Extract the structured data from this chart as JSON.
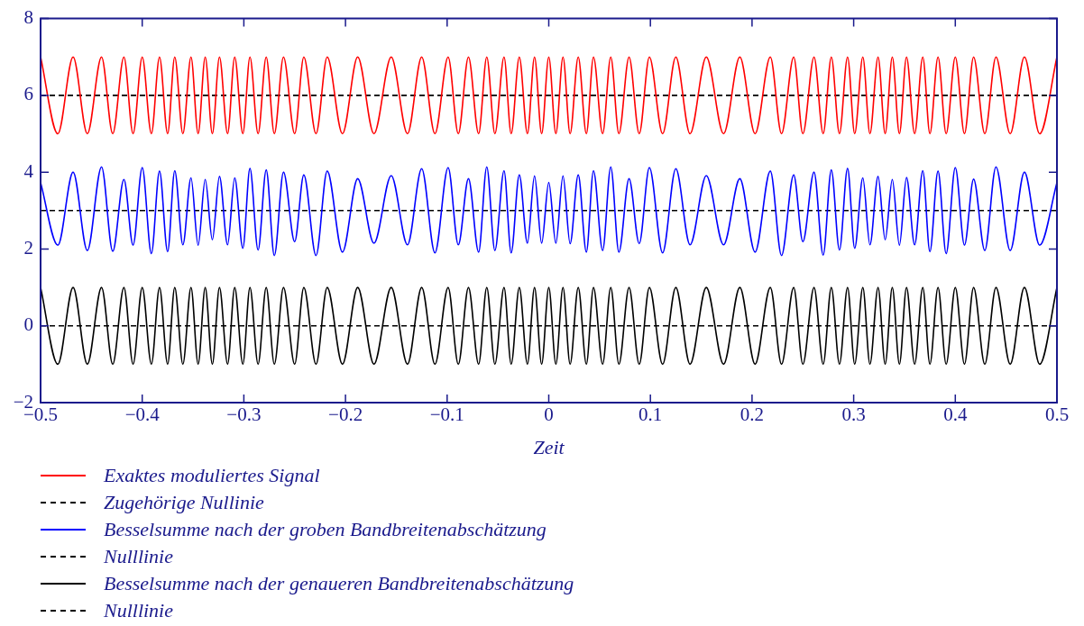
{
  "chart_data": {
    "type": "line",
    "xlabel": "Zeit",
    "x": [
      -0.5,
      -0.483,
      -0.468,
      -0.454,
      -0.44,
      -0.429,
      -0.418,
      -0.409,
      -0.4,
      -0.391,
      -0.383,
      -0.375,
      -0.368,
      -0.36,
      -0.352,
      -0.345,
      -0.338,
      -0.331,
      -0.324,
      -0.316,
      -0.309,
      -0.301,
      -0.294,
      -0.286,
      -0.278,
      -0.27,
      -0.261,
      -0.25,
      -0.241,
      -0.229,
      -0.218,
      -0.203,
      -0.188,
      -0.172,
      -0.155,
      -0.139,
      -0.125,
      -0.112,
      -0.099,
      -0.089,
      -0.079,
      -0.069,
      -0.061,
      -0.053,
      -0.044,
      -0.037,
      -0.029,
      -0.021,
      -0.014,
      -0.007,
      0,
      0.007,
      0.014,
      0.021,
      0.029,
      0.037,
      0.044,
      0.053,
      0.061,
      0.069,
      0.079,
      0.089,
      0.099,
      0.112,
      0.125,
      0.139,
      0.155,
      0.172,
      0.188,
      0.203,
      0.218,
      0.229,
      0.241,
      0.25,
      0.261,
      0.27,
      0.278,
      0.286,
      0.294,
      0.301,
      0.309,
      0.316,
      0.324,
      0.331,
      0.338,
      0.345,
      0.352,
      0.36,
      0.368,
      0.375,
      0.383,
      0.391,
      0.4,
      0.409,
      0.418,
      0.429,
      0.44,
      0.454,
      0.468,
      0.483,
      0.5
    ],
    "series": [
      {
        "name": "Exaktes moduliertes Signal",
        "color": "#ff0000",
        "line_style": "solid",
        "values": [
          7,
          5,
          7,
          5,
          7,
          5,
          7,
          5,
          7,
          5,
          7,
          5,
          7,
          5,
          7,
          5,
          7,
          5,
          7,
          5,
          7,
          5,
          7,
          5,
          7,
          5,
          7,
          5,
          7,
          5,
          7,
          5,
          7,
          5,
          7,
          5,
          7,
          5,
          7,
          5,
          7,
          5,
          7,
          5,
          7,
          5,
          7,
          5,
          7,
          5,
          7,
          5,
          7,
          5,
          7,
          5,
          7,
          5,
          7,
          5,
          7,
          5,
          7,
          5,
          7,
          5,
          7,
          5,
          7,
          5,
          7,
          5,
          7,
          5,
          7,
          5,
          7,
          5,
          7,
          5,
          7,
          5,
          7,
          5,
          7,
          5,
          7,
          5,
          7,
          5,
          7,
          5,
          7,
          5,
          7,
          5,
          7,
          5,
          7,
          5,
          7
        ]
      },
      {
        "name": "Zugehörige Nullinie",
        "color": "#000000",
        "line_style": "dashed",
        "values": [
          6,
          6,
          6,
          6,
          6,
          6,
          6,
          6,
          6,
          6,
          6,
          6,
          6,
          6,
          6,
          6,
          6,
          6,
          6,
          6,
          6,
          6,
          6,
          6,
          6,
          6,
          6,
          6,
          6,
          6,
          6,
          6,
          6,
          6,
          6,
          6,
          6,
          6,
          6,
          6,
          6,
          6,
          6,
          6,
          6,
          6,
          6,
          6,
          6,
          6,
          6,
          6,
          6,
          6,
          6,
          6,
          6,
          6,
          6,
          6,
          6,
          6,
          6,
          6,
          6,
          6,
          6,
          6,
          6,
          6,
          6,
          6,
          6,
          6,
          6,
          6,
          6,
          6,
          6,
          6,
          6,
          6,
          6,
          6,
          6,
          6,
          6,
          6,
          6,
          6,
          6,
          6,
          6,
          6,
          6,
          6,
          6,
          6,
          6,
          6,
          6
        ]
      },
      {
        "name": "Besselsumme nach der groben Bandbreitenabschätzung",
        "color": "#0000ff",
        "line_style": "solid",
        "values": [
          3.73,
          2.1,
          4.0,
          1.96,
          4.14,
          1.94,
          3.81,
          2.1,
          4.12,
          1.88,
          4.03,
          1.93,
          4.04,
          2.11,
          3.85,
          2.1,
          3.81,
          2.24,
          3.89,
          2.11,
          3.85,
          2.02,
          4.1,
          1.97,
          4.06,
          1.83,
          4.0,
          2.19,
          3.93,
          1.83,
          4.03,
          1.92,
          3.83,
          2.15,
          3.91,
          2.11,
          4.09,
          1.9,
          4.12,
          2.11,
          3.83,
          1.92,
          4.14,
          1.96,
          4.04,
          1.9,
          3.93,
          2.15,
          3.9,
          2.15,
          3.73,
          2.15,
          3.9,
          2.14,
          3.93,
          1.92,
          4.04,
          1.96,
          4.14,
          1.92,
          3.83,
          2.14,
          4.12,
          1.9,
          4.09,
          2.11,
          3.91,
          2.11,
          3.83,
          1.92,
          4.03,
          1.83,
          3.93,
          2.19,
          4.0,
          1.84,
          4.06,
          1.97,
          4.1,
          2.02,
          3.85,
          2.11,
          3.89,
          2.24,
          3.81,
          2.1,
          3.86,
          2.11,
          4.04,
          1.93,
          4.03,
          1.88,
          4.12,
          2.1,
          3.82,
          1.96,
          4.14,
          1.96,
          4.0,
          2.1,
          3.73
        ]
      },
      {
        "name": "Nulllinie",
        "color": "#000000",
        "line_style": "dashed",
        "values": [
          3,
          3,
          3,
          3,
          3,
          3,
          3,
          3,
          3,
          3,
          3,
          3,
          3,
          3,
          3,
          3,
          3,
          3,
          3,
          3,
          3,
          3,
          3,
          3,
          3,
          3,
          3,
          3,
          3,
          3,
          3,
          3,
          3,
          3,
          3,
          3,
          3,
          3,
          3,
          3,
          3,
          3,
          3,
          3,
          3,
          3,
          3,
          3,
          3,
          3,
          3,
          3,
          3,
          3,
          3,
          3,
          3,
          3,
          3,
          3,
          3,
          3,
          3,
          3,
          3,
          3,
          3,
          3,
          3,
          3,
          3,
          3,
          3,
          3,
          3,
          3,
          3,
          3,
          3,
          3,
          3,
          3,
          3,
          3,
          3,
          3,
          3,
          3,
          3,
          3,
          3,
          3,
          3,
          3,
          3,
          3,
          3,
          3,
          3,
          3,
          3
        ]
      },
      {
        "name": "Besselsumme nach der genaueren Bandbreitenabschätzung",
        "color": "#000000",
        "line_style": "solid",
        "values": [
          1,
          -1,
          1,
          -1,
          1,
          -1,
          1,
          -1,
          1,
          -1,
          1,
          -1,
          1,
          -1,
          1,
          -1,
          1,
          -1,
          1,
          -1,
          1,
          -1,
          1,
          -1,
          1,
          -1,
          1,
          -1,
          1,
          -1,
          1,
          -1,
          1,
          -1,
          1,
          -1,
          1,
          -1,
          1,
          -1,
          1,
          -1,
          1,
          -1,
          1,
          -1,
          1,
          -1,
          1,
          -1,
          1,
          -1,
          1,
          -1,
          1,
          -1,
          1,
          -1,
          1,
          -1,
          1,
          -1,
          1,
          -1,
          1,
          -1,
          1,
          -1,
          1,
          -1,
          1,
          -1,
          1,
          -1,
          1,
          -1,
          1,
          -1,
          1,
          -1,
          1,
          -1,
          1,
          -1,
          1,
          -1,
          1,
          -1,
          1,
          -1,
          1,
          -1,
          1,
          -1,
          1,
          -1,
          1,
          -1,
          1,
          -1,
          1
        ]
      },
      {
        "name": "Nulllinie",
        "color": "#000000",
        "line_style": "dashed",
        "values": [
          0,
          0,
          0,
          0,
          0,
          0,
          0,
          0,
          0,
          0,
          0,
          0,
          0,
          0,
          0,
          0,
          0,
          0,
          0,
          0,
          0,
          0,
          0,
          0,
          0,
          0,
          0,
          0,
          0,
          0,
          0,
          0,
          0,
          0,
          0,
          0,
          0,
          0,
          0,
          0,
          0,
          0,
          0,
          0,
          0,
          0,
          0,
          0,
          0,
          0,
          0,
          0,
          0,
          0,
          0,
          0,
          0,
          0,
          0,
          0,
          0,
          0,
          0,
          0,
          0,
          0,
          0,
          0,
          0,
          0,
          0,
          0,
          0,
          0,
          0,
          0,
          0,
          0,
          0,
          0,
          0,
          0,
          0,
          0,
          0,
          0,
          0,
          0,
          0,
          0,
          0,
          0,
          0,
          0,
          0,
          0,
          0,
          0,
          0,
          0,
          0
        ]
      }
    ],
    "xlim": [
      -0.5,
      0.5
    ],
    "xticks": [
      {
        "value": -0.5,
        "label": "−0.5"
      },
      {
        "value": -0.4,
        "label": "−0.4"
      },
      {
        "value": -0.3,
        "label": "−0.3"
      },
      {
        "value": -0.2,
        "label": "−0.2"
      },
      {
        "value": -0.1,
        "label": "−0.1"
      },
      0,
      0.1,
      0.2,
      0.3,
      0.4,
      0.5
    ],
    "ylim": [
      -2,
      8
    ],
    "yticks": [
      {
        "value": -2,
        "label": "−2"
      },
      0,
      2,
      4,
      6,
      8
    ],
    "marker": "none",
    "grid": false,
    "legend": "bottom"
  }
}
